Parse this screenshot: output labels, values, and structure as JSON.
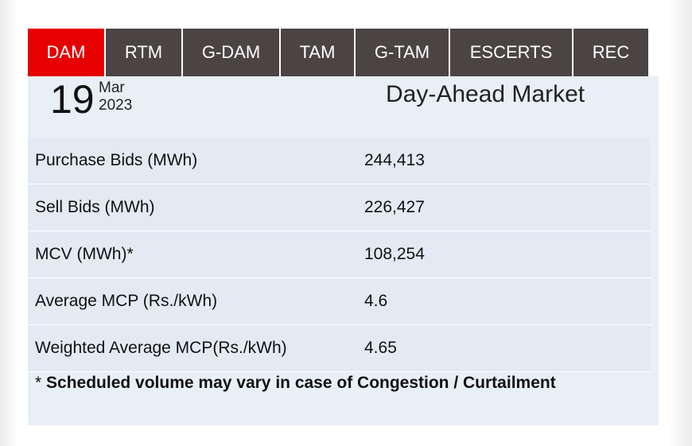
{
  "tabs": [
    "DAM",
    "RTM",
    "G-DAM",
    "TAM",
    "G-TAM",
    "ESCERTS",
    "REC"
  ],
  "date": {
    "day": "19",
    "month": "Mar",
    "year": "2023"
  },
  "title": "Day-Ahead Market",
  "table": {
    "rows": [
      [
        "Purchase Bids (MWh)",
        "244,413"
      ],
      [
        "Sell Bids (MWh)",
        "226,427"
      ],
      [
        "MCV (MWh)*",
        "108,254"
      ],
      [
        "Average MCP (Rs./kWh)",
        "4.6"
      ],
      [
        "Weighted Average MCP(Rs./kWh)",
        "4.65"
      ]
    ]
  },
  "footnote": {
    "marker": "*",
    "text": "Scheduled volume may vary in case of Congestion / Curtailment"
  }
}
